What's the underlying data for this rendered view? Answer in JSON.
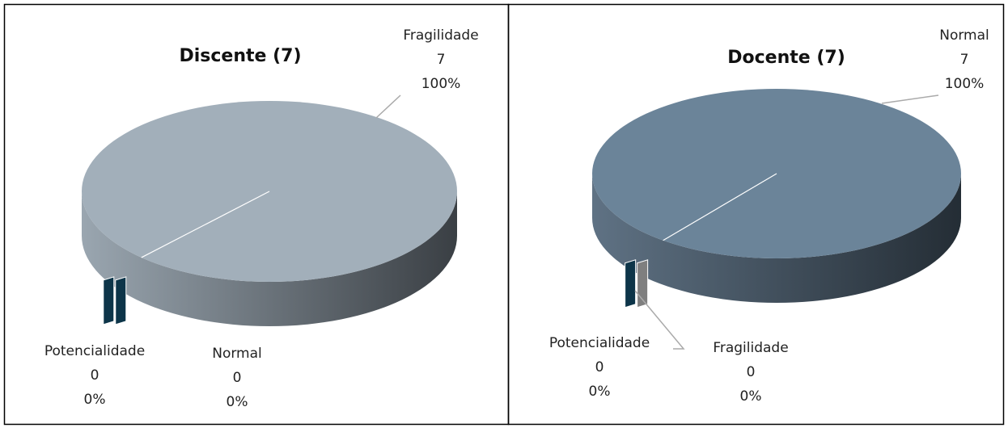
{
  "chart_data": [
    {
      "type": "pie3d",
      "title": "Discente (7)",
      "categories": [
        "Fragilidade",
        "Potencialidade",
        "Normal"
      ],
      "values": [
        7,
        0,
        0
      ],
      "percent_labels": [
        "100%",
        "0%",
        "0%"
      ],
      "colors": [
        "#a2afba",
        "#0d3549",
        "#0d3549"
      ]
    },
    {
      "type": "pie3d",
      "title": "Docente (7)",
      "categories": [
        "Normal",
        "Potencialidade",
        "Fragilidade"
      ],
      "values": [
        7,
        0,
        0
      ],
      "percent_labels": [
        "100%",
        "0%",
        "0%"
      ],
      "colors": [
        "#6b8499",
        "#0d3549",
        "#7f7f7f"
      ]
    }
  ]
}
